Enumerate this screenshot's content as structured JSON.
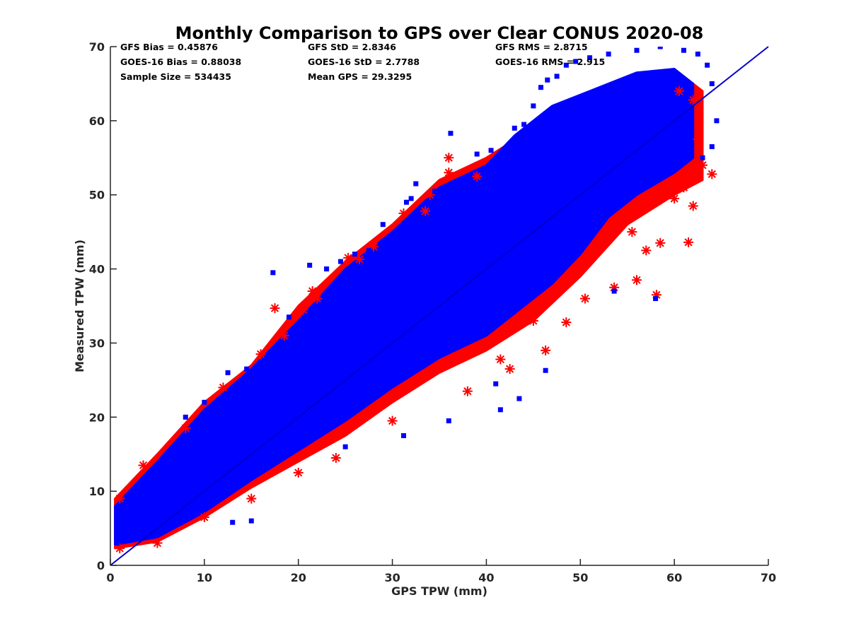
{
  "chart_data": {
    "type": "scatter",
    "title": "Monthly Comparison to GPS over Clear CONUS 2020-08",
    "xlabel": "GPS TPW (mm)",
    "ylabel": "Measured TPW (mm)",
    "xlim": [
      0,
      70
    ],
    "ylim": [
      0,
      70
    ],
    "xticks": [
      0,
      10,
      20,
      30,
      40,
      50,
      60,
      70
    ],
    "yticks": [
      0,
      10,
      20,
      30,
      40,
      50,
      60,
      70
    ],
    "grid": false,
    "stats": [
      {
        "id": "gfs-bias",
        "text": "GFS Bias = 0.45876"
      },
      {
        "id": "goes16-bias",
        "text": "GOES-16 Bias = 0.88038"
      },
      {
        "id": "sample-size",
        "text": "Sample Size = 534435"
      },
      {
        "id": "gfs-std",
        "text": "GFS StD = 2.8346"
      },
      {
        "id": "goes16-std",
        "text": "GOES-16 StD = 2.7788"
      },
      {
        "id": "mean-gps",
        "text": "Mean GPS = 29.3295"
      },
      {
        "id": "gfs-rms",
        "text": "GFS RMS = 2.8715"
      },
      {
        "id": "goes16-rms",
        "text": "GOES-16 RMS = 2.915"
      }
    ],
    "reference_line": {
      "name": "1:1 line",
      "x": [
        0,
        70
      ],
      "y": [
        0,
        70
      ],
      "color": "#0000cc"
    },
    "series": [
      {
        "name": "GFS",
        "marker": "asterisk",
        "color": "#ff0000",
        "envelope": {
          "x": [
            0.5,
            5,
            10,
            15,
            20,
            25,
            30,
            35,
            40,
            45,
            50,
            55,
            60,
            63
          ],
          "lower": [
            2.3,
            3.2,
            6.5,
            10.5,
            14,
            17.5,
            22,
            26,
            29,
            33,
            39,
            46,
            50,
            52
          ],
          "upper": [
            9,
            15,
            22,
            27,
            35,
            41,
            46,
            52,
            55,
            59,
            63,
            66,
            67,
            64
          ]
        },
        "points": [
          [
            1.0,
            9.0
          ],
          [
            3.5,
            13.5
          ],
          [
            17.5,
            34.7
          ],
          [
            18.5,
            31.0
          ],
          [
            20.5,
            34.5
          ],
          [
            21.5,
            37.0
          ],
          [
            25.3,
            41.5
          ],
          [
            26.5,
            41.3
          ],
          [
            31.2,
            47.5
          ],
          [
            33.5,
            47.8
          ],
          [
            36.0,
            55.0
          ],
          [
            36.0,
            53.0
          ],
          [
            41.5,
            27.8
          ],
          [
            42.5,
            26.5
          ],
          [
            46.3,
            29.0
          ],
          [
            48.5,
            32.8
          ],
          [
            53.6,
            37.5
          ],
          [
            58.1,
            36.5
          ],
          [
            61.5,
            43.6
          ],
          [
            62.0,
            48.5
          ],
          [
            62.5,
            57.5
          ],
          [
            63.0,
            54.0
          ],
          [
            64.0,
            52.8
          ],
          [
            62.0,
            62.8
          ],
          [
            60.5,
            64.0
          ],
          [
            58.5,
            43.5
          ],
          [
            57.0,
            42.5
          ],
          [
            55.5,
            45.0
          ],
          [
            60.0,
            49.5
          ],
          [
            61.0,
            51.0
          ],
          [
            56.0,
            38.5
          ],
          [
            50.5,
            36.0
          ],
          [
            45.0,
            33.0
          ],
          [
            38.0,
            23.5
          ],
          [
            30.0,
            19.5
          ],
          [
            24.0,
            14.5
          ],
          [
            20.0,
            12.5
          ],
          [
            15.0,
            9.0
          ],
          [
            10.0,
            6.5
          ],
          [
            5.0,
            3.0
          ],
          [
            1.0,
            2.3
          ],
          [
            8.0,
            18.5
          ],
          [
            12.0,
            24.0
          ],
          [
            16.0,
            28.5
          ],
          [
            22.0,
            36.0
          ],
          [
            28.0,
            43.0
          ],
          [
            34.0,
            50.0
          ],
          [
            39.0,
            52.5
          ]
        ]
      },
      {
        "name": "GOES-16",
        "marker": "square",
        "color": "#0000ff",
        "envelope": {
          "x": [
            0.5,
            5,
            10,
            15,
            20,
            25,
            30,
            35,
            40,
            43,
            47,
            50,
            53,
            56,
            60,
            62
          ],
          "lower": [
            2.8,
            3.8,
            7.2,
            11.5,
            15.5,
            19.5,
            24,
            28,
            31,
            34,
            38,
            42,
            47,
            50,
            53,
            55
          ],
          "upper": [
            8,
            14,
            21,
            26.5,
            33,
            40,
            45,
            51,
            54,
            58,
            62,
            63.5,
            65,
            66.5,
            67,
            65
          ]
        },
        "points": [
          [
            17.3,
            39.5
          ],
          [
            21.2,
            40.5
          ],
          [
            23.0,
            40.0
          ],
          [
            24.5,
            41.0
          ],
          [
            27.5,
            42.5
          ],
          [
            29.0,
            46.0
          ],
          [
            32.5,
            51.5
          ],
          [
            31.5,
            49.0
          ],
          [
            32.0,
            49.5
          ],
          [
            36.2,
            58.3
          ],
          [
            37.8,
            52.0
          ],
          [
            39.0,
            55.5
          ],
          [
            40.5,
            56.0
          ],
          [
            42.5,
            55.0
          ],
          [
            43.0,
            59.0
          ],
          [
            44.0,
            59.5
          ],
          [
            45.0,
            62.0
          ],
          [
            45.8,
            64.5
          ],
          [
            46.5,
            65.5
          ],
          [
            47.5,
            66.0
          ],
          [
            48.5,
            67.5
          ],
          [
            49.5,
            68.0
          ],
          [
            51.0,
            68.5
          ],
          [
            53.0,
            69.0
          ],
          [
            56.0,
            69.5
          ],
          [
            58.5,
            70.0
          ],
          [
            61.0,
            69.5
          ],
          [
            62.5,
            69.0
          ],
          [
            63.5,
            67.5
          ],
          [
            64.0,
            65.0
          ],
          [
            64.5,
            60.0
          ],
          [
            64.0,
            56.5
          ],
          [
            63.0,
            55.0
          ],
          [
            58.0,
            36.0
          ],
          [
            53.6,
            37.0
          ],
          [
            46.3,
            26.3
          ],
          [
            43.5,
            22.5
          ],
          [
            41.5,
            21.0
          ],
          [
            41.0,
            24.5
          ],
          [
            36.0,
            19.5
          ],
          [
            31.2,
            17.5
          ],
          [
            25.0,
            16.0
          ],
          [
            15.0,
            6.0
          ],
          [
            13.0,
            5.8
          ],
          [
            1.0,
            8.0
          ],
          [
            0.7,
            3.0
          ],
          [
            2.0,
            6.5
          ],
          [
            6.0,
            14.0
          ],
          [
            8.0,
            20.0
          ],
          [
            10.0,
            22.0
          ],
          [
            12.5,
            26.0
          ],
          [
            14.5,
            26.5
          ],
          [
            16.0,
            27.5
          ],
          [
            19.0,
            33.5
          ],
          [
            26.0,
            42.0
          ],
          [
            34.5,
            50.5
          ]
        ]
      }
    ]
  }
}
